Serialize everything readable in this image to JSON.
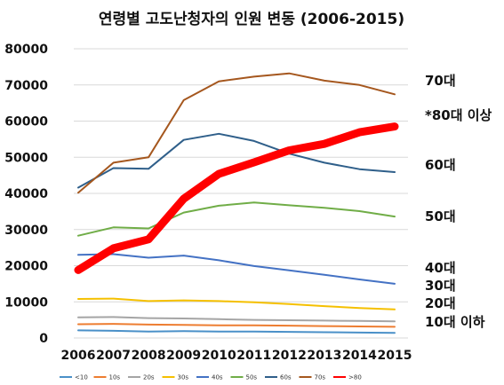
{
  "chart_data": {
    "type": "line",
    "title": "연령별 고도난청자의 인원 변동 (2006-2015)",
    "xlabel": "",
    "ylabel": "",
    "x": [
      "2006",
      "2007",
      "2008",
      "2009",
      "2010",
      "2011",
      "2012",
      "2013",
      "2014",
      "2015"
    ],
    "ylim": [
      0,
      80000
    ],
    "yticks": [
      "0",
      "10000",
      "20000",
      "30000",
      "40000",
      "50000",
      "60000",
      "70000",
      "80000"
    ],
    "grid": true,
    "legend": "bottom",
    "series": [
      {
        "name": "<10",
        "color": "#4a90c8",
        "width": 2,
        "values": [
          2100,
          2000,
          1800,
          1900,
          1800,
          1800,
          1700,
          1600,
          1500,
          1400
        ]
      },
      {
        "name": "10s",
        "color": "#ed7d31",
        "width": 2,
        "values": [
          3800,
          3900,
          3700,
          3600,
          3500,
          3500,
          3400,
          3300,
          3200,
          3100
        ]
      },
      {
        "name": "20s",
        "color": "#a5a5a5",
        "width": 2,
        "values": [
          5700,
          5800,
          5500,
          5400,
          5200,
          5000,
          4900,
          4800,
          4700,
          4600
        ]
      },
      {
        "name": "30s",
        "color": "#f5c000",
        "width": 2,
        "values": [
          10800,
          10900,
          10200,
          10400,
          10200,
          9900,
          9400,
          8800,
          8300,
          7900
        ]
      },
      {
        "name": "40s",
        "color": "#4472c4",
        "width": 2,
        "values": [
          23000,
          23200,
          22200,
          22800,
          21500,
          19900,
          18700,
          17500,
          16200,
          15000
        ]
      },
      {
        "name": "50s",
        "color": "#70ad47",
        "width": 2,
        "values": [
          28300,
          30600,
          30300,
          34700,
          36600,
          37500,
          36700,
          36000,
          35100,
          33600
        ]
      },
      {
        "name": "60s",
        "color": "#2f5f8a",
        "width": 2,
        "values": [
          41600,
          47000,
          46800,
          54800,
          56500,
          54500,
          51000,
          48500,
          46700,
          45900
        ]
      },
      {
        "name": "70s",
        "color": "#a5571e",
        "width": 2,
        "values": [
          40200,
          48500,
          50000,
          65800,
          71000,
          72300,
          73200,
          71200,
          70000,
          67400
        ]
      },
      {
        "name": ">80",
        "color": "#ff0000",
        "width": 9,
        "values": [
          18800,
          24800,
          27300,
          38500,
          45400,
          48600,
          51900,
          53700,
          56900,
          58500
        ]
      }
    ],
    "annotations": [
      "70대",
      "*80대 이상",
      "60대",
      "50대",
      "40대",
      "30대",
      "20대",
      "10대 이하"
    ]
  }
}
